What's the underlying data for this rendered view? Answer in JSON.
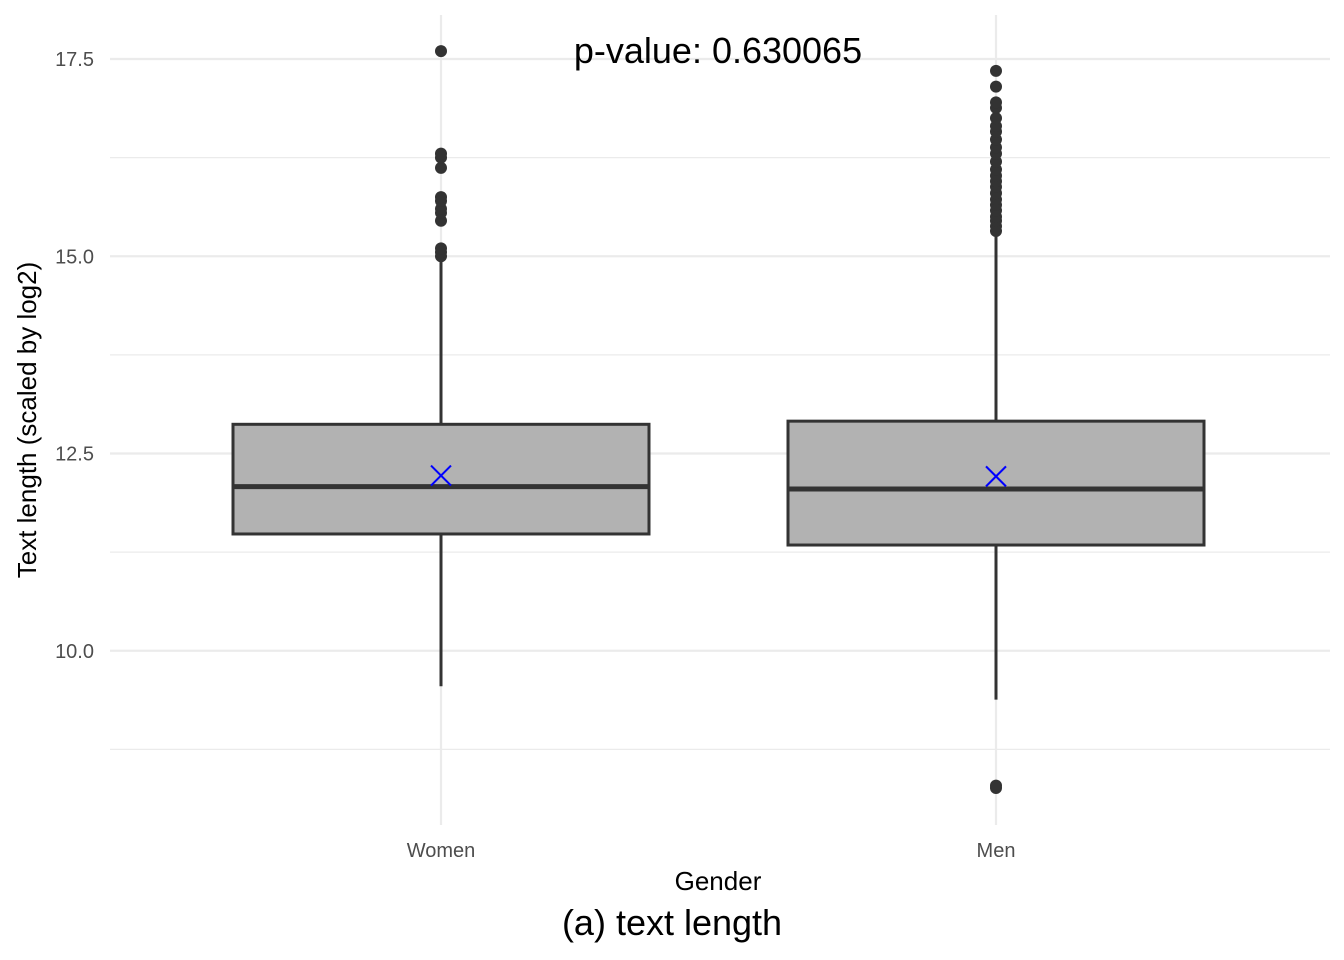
{
  "chart_data": {
    "type": "box",
    "annotation": "p-value: 0.630065",
    "xlabel": "Gender",
    "ylabel": "Text length (scaled by log2)",
    "ylim": [
      8.2,
      17.75
    ],
    "yticks": [
      10.0,
      12.5,
      15.0,
      17.5
    ],
    "yticklabels": [
      "10.0",
      "12.5",
      "15.0",
      "17.5"
    ],
    "categories": [
      "Women",
      "Men"
    ],
    "boxes": [
      {
        "category": "Women",
        "whisker_low": 9.55,
        "q1": 11.48,
        "median": 12.08,
        "q3": 12.87,
        "whisker_high": 14.95,
        "mean": 12.22,
        "outliers": [
          15.0,
          15.05,
          15.1,
          15.45,
          15.55,
          15.6,
          15.7,
          15.75,
          16.12,
          16.25,
          16.3,
          17.6
        ]
      },
      {
        "category": "Men",
        "whisker_low": 9.38,
        "q1": 11.34,
        "median": 12.05,
        "q3": 12.91,
        "whisker_high": 15.28,
        "mean": 12.21,
        "outliers": [
          8.26,
          8.29,
          15.32,
          15.38,
          15.45,
          15.5,
          15.58,
          15.65,
          15.72,
          15.8,
          15.88,
          15.95,
          16.02,
          16.1,
          16.2,
          16.3,
          16.38,
          16.48,
          16.58,
          16.65,
          16.75,
          16.88,
          16.95,
          17.15,
          17.35
        ]
      }
    ],
    "colors": {
      "box_fill": "#b2b2b2",
      "box_line": "#333333",
      "mean_marker": "#0000ff",
      "grid": "#ebebeb"
    }
  },
  "caption": "(a) text length"
}
